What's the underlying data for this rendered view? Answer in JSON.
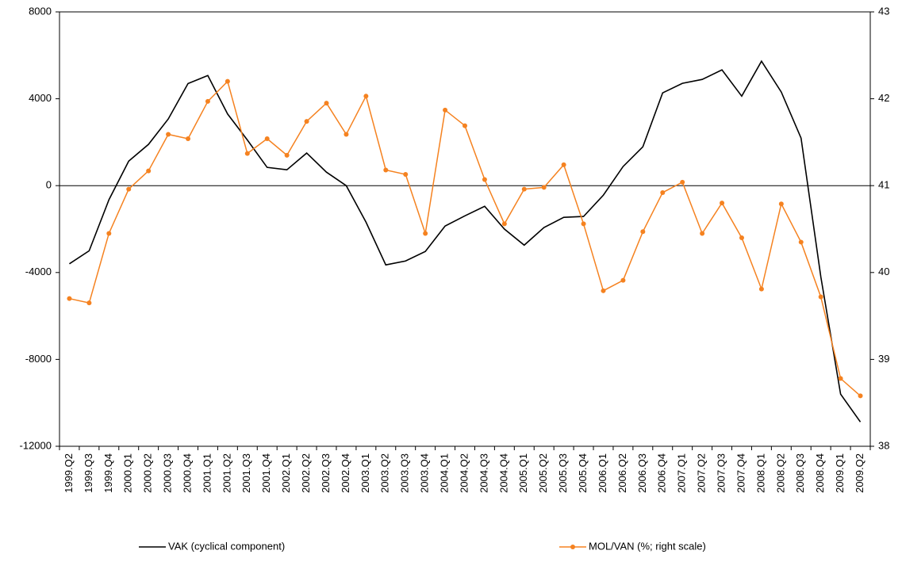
{
  "chart_data": {
    "type": "line",
    "categories": [
      "1999.Q2",
      "1999.Q3",
      "1999.Q4",
      "2000.Q1",
      "2000.Q2",
      "2000.Q3",
      "2000.Q4",
      "2001.Q1",
      "2001.Q2",
      "2001.Q3",
      "2001.Q4",
      "2002.Q1",
      "2002.Q2",
      "2002.Q3",
      "2002.Q4",
      "2003.Q1",
      "2003.Q2",
      "2003.Q3",
      "2003.Q4",
      "2004.Q1",
      "2004.Q2",
      "2004.Q3",
      "2004.Q4",
      "2005.Q1",
      "2005.Q2",
      "2005.Q3",
      "2005.Q4",
      "2006.Q1",
      "2006.Q2",
      "2006.Q3",
      "2006.Q4",
      "2007.Q1",
      "2007.Q2",
      "2007.Q3",
      "2007.Q4",
      "2008.Q1",
      "2008.Q2",
      "2008.Q3",
      "2008.Q4",
      "2009.Q1",
      "2009.Q2"
    ],
    "series": [
      {
        "name": "VAK (cyclical component)",
        "color": "#000000",
        "values": [
          -3600,
          -3000,
          -650,
          1130,
          1900,
          3070,
          4700,
          5070,
          3300,
          2100,
          840,
          730,
          1500,
          620,
          0,
          -1680,
          -3650,
          -3470,
          -3030,
          -1860,
          -1390,
          -950,
          -2000,
          -2740,
          -1930,
          -1460,
          -1420,
          -440,
          880,
          1790,
          4270,
          4710,
          4890,
          5330,
          4120,
          5730,
          4310,
          2190,
          -4200,
          -9600,
          -10880
        ]
      },
      {
        "name": "MOL/VAN (%; right scale)",
        "color": "#f58220",
        "axis": "y2",
        "marker": true,
        "values": [
          39.7,
          39.65,
          40.45,
          40.96,
          41.17,
          41.59,
          41.54,
          41.97,
          42.2,
          41.37,
          41.54,
          41.35,
          41.74,
          41.95,
          41.59,
          42.03,
          41.18,
          41.13,
          40.45,
          41.87,
          41.69,
          41.07,
          40.56,
          40.96,
          40.98,
          41.24,
          40.56,
          39.79,
          39.91,
          40.47,
          40.92,
          41.04,
          40.45,
          40.8,
          40.4,
          39.81,
          40.79,
          40.35,
          39.72,
          38.78,
          38.58
        ]
      }
    ],
    "ylim": [
      -12000,
      8000
    ],
    "yticks": [
      -12000,
      -8000,
      -4000,
      0,
      4000,
      8000
    ],
    "y2lim": [
      38,
      43
    ],
    "y2ticks": [
      38,
      39,
      40,
      41,
      42,
      43
    ],
    "legend": "bottom"
  }
}
